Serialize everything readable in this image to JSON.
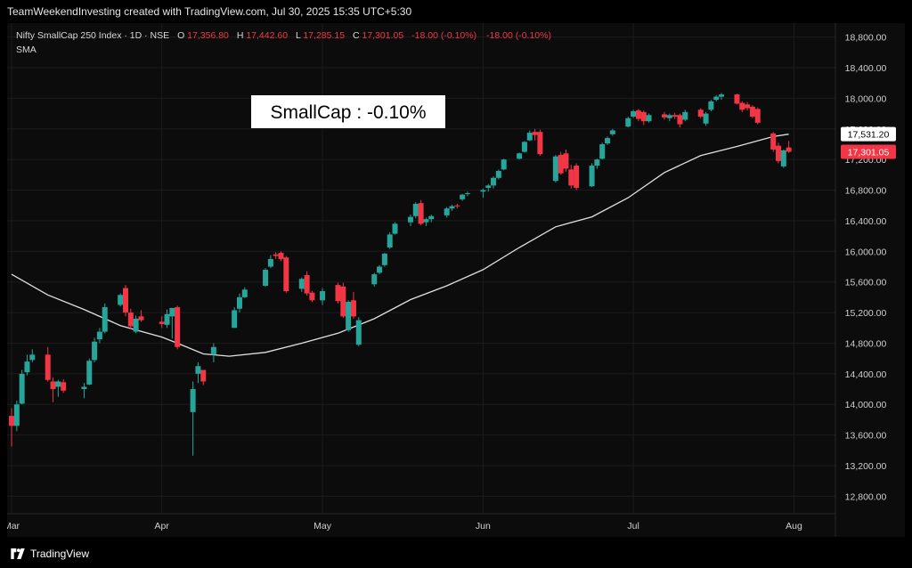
{
  "header": {
    "credit": "TeamWeekendInvesting created with TradingView.com, Jul 30, 2025 15:35 UTC+5:30"
  },
  "legend": {
    "symbol": "Nifty SmallCap 250 Index · 1D · NSE",
    "o_label": "O",
    "o_value": "17,356.80",
    "h_label": "H",
    "h_value": "17,442.60",
    "l_label": "L",
    "l_value": "17,285.15",
    "c_label": "C",
    "c_value": "17,301.05",
    "change": "-18.00 (-0.10%)",
    "change2": "-18.00 (-0.10%)",
    "indicator": "SMA"
  },
  "annotation": "SmallCap : -0.10%",
  "footer": {
    "brand": "TradingView"
  },
  "colors": {
    "up": "#26a69a",
    "down": "#f23645",
    "sma": "#e0e0e0",
    "grid": "#1c1c1c",
    "axis_text": "#cfcfcf",
    "background": "#0c0c0c"
  },
  "chart_data": {
    "type": "candlestick",
    "title": "Nifty SmallCap 250 Index · 1D · NSE",
    "ylim": [
      12700,
      18900
    ],
    "y_ticks": [
      12800,
      13200,
      13600,
      14000,
      14400,
      14800,
      15200,
      15600,
      16000,
      16400,
      16800,
      17200,
      17600,
      18000,
      18400,
      18800
    ],
    "y_tick_labels": [
      "12,800.00",
      "13,200.00",
      "13,600.00",
      "14,000.00",
      "14,400.00",
      "14,800.00",
      "15,200.00",
      "15,600.00",
      "16,000.00",
      "16,400.00",
      "16,800.00",
      "17,200.00",
      "17,600.00",
      "18,000.00",
      "18,400.00",
      "18,800.00"
    ],
    "x_labels": [
      {
        "label": "Mar",
        "date": "2025-03-03"
      },
      {
        "label": "Apr",
        "date": "2025-04-01"
      },
      {
        "label": "May",
        "date": "2025-05-02"
      },
      {
        "label": "Jun",
        "date": "2025-06-02"
      },
      {
        "label": "Jul",
        "date": "2025-07-01"
      },
      {
        "label": "Aug",
        "date": "2025-08-01"
      }
    ],
    "x_start_date": "2025-03-03",
    "x_end_date": "2025-08-09",
    "price_labels": [
      {
        "series": "SMA",
        "value": 17531.2,
        "text": "17,531.20"
      },
      {
        "series": "Close",
        "value": 17301.05,
        "text": "17,301.05"
      }
    ],
    "candles": [
      {
        "date": "2025-03-03",
        "o": 13850,
        "h": 13950,
        "l": 13450,
        "c": 13720
      },
      {
        "date": "2025-03-04",
        "o": 13720,
        "h": 14050,
        "l": 13650,
        "c": 14000
      },
      {
        "date": "2025-03-05",
        "o": 14010,
        "h": 14450,
        "l": 14000,
        "c": 14400
      },
      {
        "date": "2025-03-06",
        "o": 14420,
        "h": 14650,
        "l": 14380,
        "c": 14560
      },
      {
        "date": "2025-03-07",
        "o": 14580,
        "h": 14720,
        "l": 14550,
        "c": 14650
      },
      {
        "date": "2025-03-10",
        "o": 14650,
        "h": 14750,
        "l": 14300,
        "c": 14320
      },
      {
        "date": "2025-03-11",
        "o": 14300,
        "h": 14350,
        "l": 14030,
        "c": 14200
      },
      {
        "date": "2025-03-12",
        "o": 14230,
        "h": 14320,
        "l": 14100,
        "c": 14300
      },
      {
        "date": "2025-03-13",
        "o": 14290,
        "h": 14330,
        "l": 14150,
        "c": 14180
      },
      {
        "date": "2025-03-17",
        "o": 14200,
        "h": 14280,
        "l": 14080,
        "c": 14230
      },
      {
        "date": "2025-03-18",
        "o": 14260,
        "h": 14600,
        "l": 14250,
        "c": 14570
      },
      {
        "date": "2025-03-19",
        "o": 14580,
        "h": 14870,
        "l": 14550,
        "c": 14820
      },
      {
        "date": "2025-03-20",
        "o": 14850,
        "h": 15000,
        "l": 14800,
        "c": 14950
      },
      {
        "date": "2025-03-21",
        "o": 14950,
        "h": 15320,
        "l": 14930,
        "c": 15270
      },
      {
        "date": "2025-03-24",
        "o": 15300,
        "h": 15450,
        "l": 15280,
        "c": 15430
      },
      {
        "date": "2025-03-25",
        "o": 15520,
        "h": 15560,
        "l": 15150,
        "c": 15200
      },
      {
        "date": "2025-03-26",
        "o": 15200,
        "h": 15250,
        "l": 14980,
        "c": 15020
      },
      {
        "date": "2025-03-27",
        "o": 14950,
        "h": 15160,
        "l": 14930,
        "c": 15120
      },
      {
        "date": "2025-03-28",
        "o": 15150,
        "h": 15230,
        "l": 15080,
        "c": 15100
      },
      {
        "date": "2025-04-01",
        "o": 15080,
        "h": 15150,
        "l": 15000,
        "c": 15050
      },
      {
        "date": "2025-04-02",
        "o": 15040,
        "h": 15240,
        "l": 15000,
        "c": 15180
      },
      {
        "date": "2025-04-03",
        "o": 15150,
        "h": 15250,
        "l": 14860,
        "c": 15260
      },
      {
        "date": "2025-04-04",
        "o": 15270,
        "h": 15290,
        "l": 14720,
        "c": 14750
      },
      {
        "date": "2025-04-07",
        "o": 13900,
        "h": 14300,
        "l": 13330,
        "c": 14200
      },
      {
        "date": "2025-04-08",
        "o": 14400,
        "h": 14550,
        "l": 14280,
        "c": 14500
      },
      {
        "date": "2025-04-09",
        "o": 14450,
        "h": 14450,
        "l": 14250,
        "c": 14300
      },
      {
        "date": "2025-04-11",
        "o": 14650,
        "h": 14800,
        "l": 14550,
        "c": 14750
      },
      {
        "date": "2025-04-15",
        "o": 15000,
        "h": 15270,
        "l": 15000,
        "c": 15230
      },
      {
        "date": "2025-04-16",
        "o": 15250,
        "h": 15450,
        "l": 15200,
        "c": 15400
      },
      {
        "date": "2025-04-17",
        "o": 15400,
        "h": 15530,
        "l": 15390,
        "c": 15500
      },
      {
        "date": "2025-04-21",
        "o": 15550,
        "h": 15780,
        "l": 15540,
        "c": 15760
      },
      {
        "date": "2025-04-22",
        "o": 15800,
        "h": 15950,
        "l": 15780,
        "c": 15900
      },
      {
        "date": "2025-04-23",
        "o": 15960,
        "h": 15990,
        "l": 15900,
        "c": 15940
      },
      {
        "date": "2025-04-24",
        "o": 15980,
        "h": 16000,
        "l": 15870,
        "c": 15900
      },
      {
        "date": "2025-04-25",
        "o": 15920,
        "h": 15940,
        "l": 15460,
        "c": 15480
      },
      {
        "date": "2025-04-28",
        "o": 15510,
        "h": 15660,
        "l": 15470,
        "c": 15640
      },
      {
        "date": "2025-04-29",
        "o": 15690,
        "h": 15740,
        "l": 15420,
        "c": 15450
      },
      {
        "date": "2025-04-30",
        "o": 15460,
        "h": 15480,
        "l": 15340,
        "c": 15360
      },
      {
        "date": "2025-05-02",
        "o": 15360,
        "h": 15520,
        "l": 15300,
        "c": 15480
      },
      {
        "date": "2025-05-05",
        "o": 15560,
        "h": 15590,
        "l": 15320,
        "c": 15350
      },
      {
        "date": "2025-05-06",
        "o": 15540,
        "h": 15590,
        "l": 15130,
        "c": 15150
      },
      {
        "date": "2025-05-07",
        "o": 14970,
        "h": 15360,
        "l": 14950,
        "c": 15340
      },
      {
        "date": "2025-05-08",
        "o": 15360,
        "h": 15470,
        "l": 15120,
        "c": 15150
      },
      {
        "date": "2025-05-09",
        "o": 14780,
        "h": 15140,
        "l": 14760,
        "c": 15100
      },
      {
        "date": "2025-05-12",
        "o": 15570,
        "h": 15720,
        "l": 15540,
        "c": 15700
      },
      {
        "date": "2025-05-13",
        "o": 15720,
        "h": 15820,
        "l": 15700,
        "c": 15800
      },
      {
        "date": "2025-05-14",
        "o": 15820,
        "h": 15980,
        "l": 15800,
        "c": 15970
      },
      {
        "date": "2025-05-15",
        "o": 16050,
        "h": 16250,
        "l": 16030,
        "c": 16220
      },
      {
        "date": "2025-05-16",
        "o": 16230,
        "h": 16380,
        "l": 16220,
        "c": 16360
      },
      {
        "date": "2025-05-19",
        "o": 16380,
        "h": 16480,
        "l": 16330,
        "c": 16450
      },
      {
        "date": "2025-05-20",
        "o": 16460,
        "h": 16640,
        "l": 16430,
        "c": 16620
      },
      {
        "date": "2025-05-21",
        "o": 16630,
        "h": 16670,
        "l": 16340,
        "c": 16360
      },
      {
        "date": "2025-05-22",
        "o": 16380,
        "h": 16440,
        "l": 16330,
        "c": 16420
      },
      {
        "date": "2025-05-23",
        "o": 16420,
        "h": 16480,
        "l": 16380,
        "c": 16460
      },
      {
        "date": "2025-05-26",
        "o": 16470,
        "h": 16580,
        "l": 16440,
        "c": 16560
      },
      {
        "date": "2025-05-27",
        "o": 16560,
        "h": 16610,
        "l": 16530,
        "c": 16590
      },
      {
        "date": "2025-05-28",
        "o": 16600,
        "h": 16620,
        "l": 16560,
        "c": 16590
      },
      {
        "date": "2025-05-29",
        "o": 16680,
        "h": 16750,
        "l": 16660,
        "c": 16740
      },
      {
        "date": "2025-05-30",
        "o": 16750,
        "h": 16780,
        "l": 16720,
        "c": 16760
      },
      {
        "date": "2025-06-02",
        "o": 16780,
        "h": 16820,
        "l": 16700,
        "c": 16800
      },
      {
        "date": "2025-06-03",
        "o": 16830,
        "h": 16880,
        "l": 16780,
        "c": 16860
      },
      {
        "date": "2025-06-04",
        "o": 16860,
        "h": 16980,
        "l": 16820,
        "c": 16960
      },
      {
        "date": "2025-06-05",
        "o": 16960,
        "h": 17070,
        "l": 16940,
        "c": 17050
      },
      {
        "date": "2025-06-06",
        "o": 17070,
        "h": 17210,
        "l": 17060,
        "c": 17200
      },
      {
        "date": "2025-06-09",
        "o": 17210,
        "h": 17290,
        "l": 17200,
        "c": 17280
      },
      {
        "date": "2025-06-10",
        "o": 17300,
        "h": 17440,
        "l": 17290,
        "c": 17430
      },
      {
        "date": "2025-06-11",
        "o": 17450,
        "h": 17580,
        "l": 17440,
        "c": 17550
      },
      {
        "date": "2025-06-12",
        "o": 17560,
        "h": 17600,
        "l": 17450,
        "c": 17520
      },
      {
        "date": "2025-06-13",
        "o": 17560,
        "h": 17590,
        "l": 17250,
        "c": 17270
      },
      {
        "date": "2025-06-16",
        "o": 16920,
        "h": 17260,
        "l": 16900,
        "c": 17240
      },
      {
        "date": "2025-06-17",
        "o": 17260,
        "h": 17300,
        "l": 17000,
        "c": 17020
      },
      {
        "date": "2025-06-18",
        "o": 17280,
        "h": 17330,
        "l": 17040,
        "c": 17080
      },
      {
        "date": "2025-06-19",
        "o": 17070,
        "h": 17130,
        "l": 16820,
        "c": 16860
      },
      {
        "date": "2025-06-20",
        "o": 17120,
        "h": 17150,
        "l": 16800,
        "c": 16830
      },
      {
        "date": "2025-06-23",
        "o": 16850,
        "h": 17150,
        "l": 16840,
        "c": 17120
      },
      {
        "date": "2025-06-24",
        "o": 17120,
        "h": 17210,
        "l": 17080,
        "c": 17200
      },
      {
        "date": "2025-06-25",
        "o": 17210,
        "h": 17420,
        "l": 17200,
        "c": 17400
      },
      {
        "date": "2025-06-26",
        "o": 17410,
        "h": 17500,
        "l": 17390,
        "c": 17480
      },
      {
        "date": "2025-06-27",
        "o": 17530,
        "h": 17600,
        "l": 17510,
        "c": 17580
      },
      {
        "date": "2025-06-30",
        "o": 17630,
        "h": 17760,
        "l": 17620,
        "c": 17740
      },
      {
        "date": "2025-07-01",
        "o": 17760,
        "h": 17850,
        "l": 17740,
        "c": 17830
      },
      {
        "date": "2025-07-02",
        "o": 17840,
        "h": 17860,
        "l": 17700,
        "c": 17730
      },
      {
        "date": "2025-07-03",
        "o": 17820,
        "h": 17840,
        "l": 17650,
        "c": 17700
      },
      {
        "date": "2025-07-04",
        "o": 17700,
        "h": 17800,
        "l": 17680,
        "c": 17780
      },
      {
        "date": "2025-07-07",
        "o": 17790,
        "h": 17820,
        "l": 17720,
        "c": 17750
      },
      {
        "date": "2025-07-08",
        "o": 17740,
        "h": 17800,
        "l": 17700,
        "c": 17780
      },
      {
        "date": "2025-07-09",
        "o": 17780,
        "h": 17810,
        "l": 17730,
        "c": 17760
      },
      {
        "date": "2025-07-10",
        "o": 17780,
        "h": 17800,
        "l": 17620,
        "c": 17660
      },
      {
        "date": "2025-07-11",
        "o": 17720,
        "h": 17850,
        "l": 17700,
        "c": 17820
      },
      {
        "date": "2025-07-14",
        "o": 17850,
        "h": 17870,
        "l": 17740,
        "c": 17760
      },
      {
        "date": "2025-07-15",
        "o": 17670,
        "h": 17820,
        "l": 17640,
        "c": 17800
      },
      {
        "date": "2025-07-16",
        "o": 17850,
        "h": 17980,
        "l": 17830,
        "c": 17960
      },
      {
        "date": "2025-07-17",
        "o": 17980,
        "h": 18040,
        "l": 17960,
        "c": 18020
      },
      {
        "date": "2025-07-18",
        "o": 18020,
        "h": 18070,
        "l": 17980,
        "c": 18050
      },
      {
        "date": "2025-07-21",
        "o": 18050,
        "h": 18060,
        "l": 17920,
        "c": 17930
      },
      {
        "date": "2025-07-22",
        "o": 17940,
        "h": 17960,
        "l": 17820,
        "c": 17850
      },
      {
        "date": "2025-07-23",
        "o": 17920,
        "h": 17950,
        "l": 17840,
        "c": 17870
      },
      {
        "date": "2025-07-24",
        "o": 17890,
        "h": 17910,
        "l": 17740,
        "c": 17760
      },
      {
        "date": "2025-07-25",
        "o": 17860,
        "h": 17880,
        "l": 17660,
        "c": 17680
      },
      {
        "date": "2025-07-28",
        "o": 17540,
        "h": 17560,
        "l": 17300,
        "c": 17330
      },
      {
        "date": "2025-07-29",
        "o": 17380,
        "h": 17420,
        "l": 17150,
        "c": 17180
      },
      {
        "date": "2025-07-30",
        "o": 17110,
        "h": 17330,
        "l": 17090,
        "c": 17320
      },
      {
        "date": "2025-07-31",
        "o": 17356.8,
        "h": 17442.6,
        "l": 17285.15,
        "c": 17301.05
      }
    ],
    "sma": [
      {
        "date": "2025-03-03",
        "v": 15700
      },
      {
        "date": "2025-03-10",
        "v": 15430
      },
      {
        "date": "2025-03-17",
        "v": 15240
      },
      {
        "date": "2025-03-24",
        "v": 15030
      },
      {
        "date": "2025-04-01",
        "v": 14880
      },
      {
        "date": "2025-04-04",
        "v": 14800
      },
      {
        "date": "2025-04-09",
        "v": 14660
      },
      {
        "date": "2025-04-14",
        "v": 14630
      },
      {
        "date": "2025-04-21",
        "v": 14680
      },
      {
        "date": "2025-04-28",
        "v": 14800
      },
      {
        "date": "2025-05-05",
        "v": 14930
      },
      {
        "date": "2025-05-12",
        "v": 15120
      },
      {
        "date": "2025-05-19",
        "v": 15370
      },
      {
        "date": "2025-05-26",
        "v": 15550
      },
      {
        "date": "2025-06-02",
        "v": 15760
      },
      {
        "date": "2025-06-09",
        "v": 16050
      },
      {
        "date": "2025-06-16",
        "v": 16320
      },
      {
        "date": "2025-06-23",
        "v": 16450
      },
      {
        "date": "2025-06-30",
        "v": 16700
      },
      {
        "date": "2025-07-07",
        "v": 17030
      },
      {
        "date": "2025-07-14",
        "v": 17250
      },
      {
        "date": "2025-07-21",
        "v": 17370
      },
      {
        "date": "2025-07-28",
        "v": 17500
      },
      {
        "date": "2025-07-31",
        "v": 17531.2
      }
    ]
  }
}
